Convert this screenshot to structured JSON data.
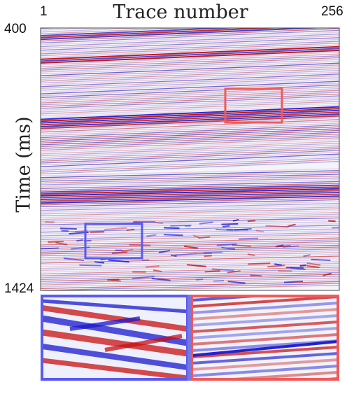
{
  "title": "Trace number",
  "x_ticks": {
    "start": "1",
    "end": "256"
  },
  "y_label": "Time (ms)",
  "y_ticks": {
    "start": "400",
    "end": "1424"
  },
  "colors": {
    "positive": "#c81010",
    "negative": "#1818d0",
    "neutral": "#ffffff",
    "red_box": "#f05a5a",
    "blue_box": "#5a5af0"
  },
  "colormap": "red-white-blue (seismic)"
}
